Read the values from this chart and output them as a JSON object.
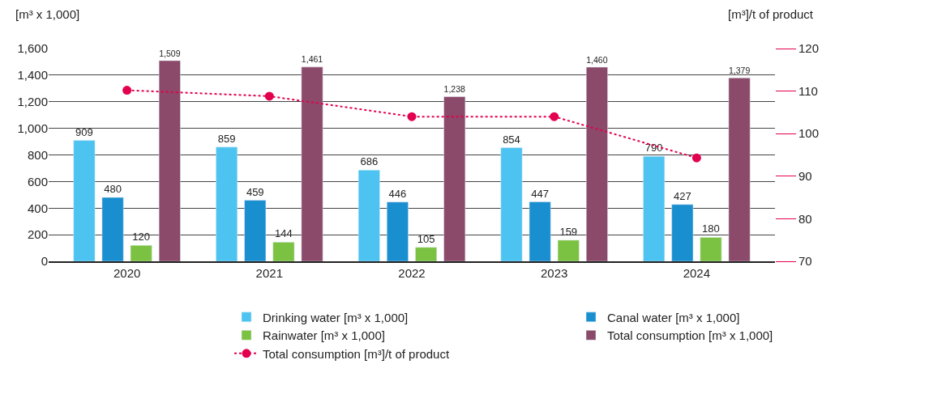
{
  "chart_data": {
    "type": "bar",
    "categories": [
      "2020",
      "2021",
      "2022",
      "2023",
      "2024"
    ],
    "ylabel": "[m³ x 1,000]",
    "y2label": "[m³]/t of product",
    "ylim": [
      0,
      1600
    ],
    "yticks": [
      {
        "value": 0,
        "label": "0"
      },
      {
        "value": 200,
        "label": "200"
      },
      {
        "value": 400,
        "label": "400"
      },
      {
        "value": 600,
        "label": "600"
      },
      {
        "value": 800,
        "label": "800"
      },
      {
        "value": 1000,
        "label": "1,000"
      },
      {
        "value": 1200,
        "label": "1,200"
      },
      {
        "value": 1400,
        "label": "1,400"
      },
      {
        "value": 1600,
        "label": "1,600"
      }
    ],
    "y2lim": [
      70,
      120
    ],
    "y2ticks": [
      70,
      80,
      90,
      100,
      110,
      120
    ],
    "series": [
      {
        "name": "Drinking water [m³ x 1,000]",
        "color": "#4cc3f0",
        "values": [
          909,
          859,
          686,
          854,
          790
        ],
        "value_labels": [
          "909",
          "859",
          "686",
          "854",
          "790"
        ]
      },
      {
        "name": "Canal water [m³ x 1,000]",
        "color": "#1a8fd0",
        "values": [
          480,
          459,
          446,
          447,
          427
        ],
        "value_labels": [
          "480",
          "459",
          "446",
          "447",
          "427"
        ]
      },
      {
        "name": "Rainwater [m³ x 1,000]",
        "color": "#7cc242",
        "values": [
          120,
          144,
          105,
          159,
          180
        ],
        "value_labels": [
          "120",
          "144",
          "105",
          "159",
          "180"
        ]
      },
      {
        "name": "Total consumption [m³ x 1,000]",
        "color": "#8b4a6a",
        "values": [
          1509,
          1461,
          1238,
          1460,
          1379
        ],
        "value_labels": [
          "1,509",
          "1,461",
          "1,238",
          "1,460",
          "1,379"
        ]
      },
      {
        "name": "Total consumption [m³]/t of product",
        "color": "#e3004f",
        "type": "line",
        "axis": "y2",
        "marker": "circle",
        "line_style": "dotted",
        "values": [
          110.2,
          108.8,
          104,
          104,
          94.3
        ]
      }
    ],
    "grid": "y",
    "legend": "bottom"
  }
}
